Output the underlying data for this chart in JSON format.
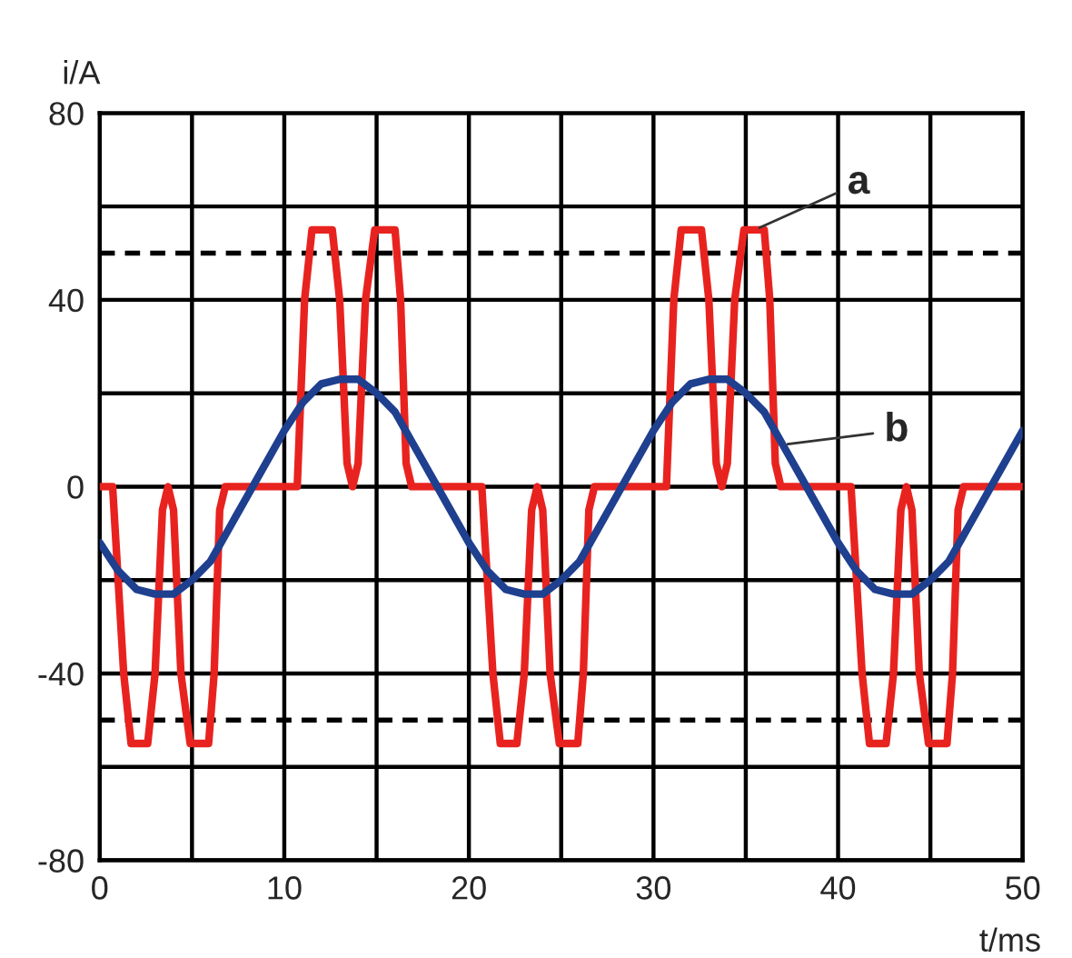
{
  "chart_data": {
    "type": "line",
    "xlabel": "t/ms",
    "ylabel": "i/A",
    "xlim": [
      0,
      50
    ],
    "ylim": [
      -80,
      80
    ],
    "xticks": [
      0,
      {
        "value": 5,
        "label": null
      },
      10,
      {
        "value": 15,
        "label": null
      },
      20,
      {
        "value": 25,
        "label": null
      },
      30,
      {
        "value": 35,
        "label": null
      },
      40,
      {
        "value": 45,
        "label": null
      },
      50
    ],
    "yticks": [
      -80,
      {
        "value": -60,
        "label": null
      },
      -40,
      {
        "value": -20,
        "label": null
      },
      0,
      {
        "value": 20,
        "label": null
      },
      40,
      {
        "value": 60,
        "label": null
      },
      80
    ],
    "grid": true,
    "legend": false,
    "marker": "none",
    "line_style": "solid",
    "series": [
      {
        "color": "#e8231f",
        "x": [
          0,
          0.7,
          1.3,
          1.7,
          2.6,
          3.0,
          3.4,
          3.7,
          4.0,
          4.4,
          4.9,
          5.9,
          6.2,
          6.5,
          6.8,
          10.7,
          11.1,
          11.5,
          12.6,
          13.0,
          13.4,
          13.7,
          14.0,
          14.4,
          14.9,
          16.0,
          16.3,
          16.6,
          16.9,
          20.7,
          21.3,
          21.7,
          22.6,
          23.0,
          23.4,
          23.7,
          24.0,
          24.4,
          24.9,
          25.9,
          26.2,
          26.5,
          26.8,
          30.7,
          31.1,
          31.5,
          32.6,
          33.0,
          33.4,
          33.7,
          34.0,
          34.4,
          34.9,
          36.0,
          36.3,
          36.6,
          36.9,
          40.7,
          41.3,
          41.7,
          42.6,
          43.0,
          43.4,
          43.7,
          44.0,
          44.4,
          44.9,
          45.9,
          46.2,
          46.5,
          46.8,
          50
        ],
        "values": [
          0,
          0,
          -40,
          -55,
          -55,
          -40,
          -5,
          0,
          -5,
          -40,
          -55,
          -55,
          -40,
          -5,
          0,
          0,
          40,
          55,
          55,
          40,
          5,
          0,
          5,
          40,
          55,
          55,
          40,
          5,
          0,
          0,
          -40,
          -55,
          -55,
          -40,
          -5,
          0,
          -5,
          -40,
          -55,
          -55,
          -40,
          -5,
          0,
          0,
          40,
          55,
          55,
          40,
          5,
          0,
          5,
          40,
          55,
          55,
          40,
          5,
          0,
          0,
          -40,
          -55,
          -55,
          -40,
          -5,
          0,
          -5,
          -40,
          -55,
          -55,
          -40,
          -5,
          0,
          0
        ]
      },
      {
        "color": "#1f3f8f",
        "x": [
          0,
          1,
          2,
          3,
          4,
          5,
          6,
          7,
          8,
          9,
          10,
          11,
          12,
          13,
          14,
          15,
          16,
          17,
          18,
          19,
          20,
          21,
          22,
          23,
          24,
          25,
          26,
          27,
          28,
          29,
          30,
          31,
          32,
          33,
          34,
          35,
          36,
          37,
          38,
          39,
          40,
          41,
          42,
          43,
          44,
          45,
          46,
          47,
          48,
          49,
          50
        ],
        "values": [
          -12,
          -18,
          -22,
          -23,
          -23,
          -20,
          -16,
          -9,
          -2,
          5,
          12,
          18,
          22,
          23,
          23,
          20,
          16,
          9,
          2,
          -5,
          -12,
          -18,
          -22,
          -23,
          -23,
          -20,
          -16,
          -9,
          -2,
          5,
          12,
          18,
          22,
          23,
          23,
          20,
          16,
          9,
          2,
          -5,
          -12,
          -18,
          -22,
          -23,
          -23,
          -20,
          -16,
          -9,
          -2,
          5,
          12
        ]
      }
    ],
    "ref_lines": [
      {
        "axis": "y",
        "value": 50,
        "color": "#000000",
        "line_style": "dashed"
      },
      {
        "axis": "y",
        "value": -50,
        "color": "#000000",
        "line_style": "dashed"
      }
    ],
    "annotations": [
      {
        "text": "a",
        "x": 35.5,
        "y": 55
      },
      {
        "text": "b",
        "x": 37,
        "y": 9
      }
    ]
  }
}
